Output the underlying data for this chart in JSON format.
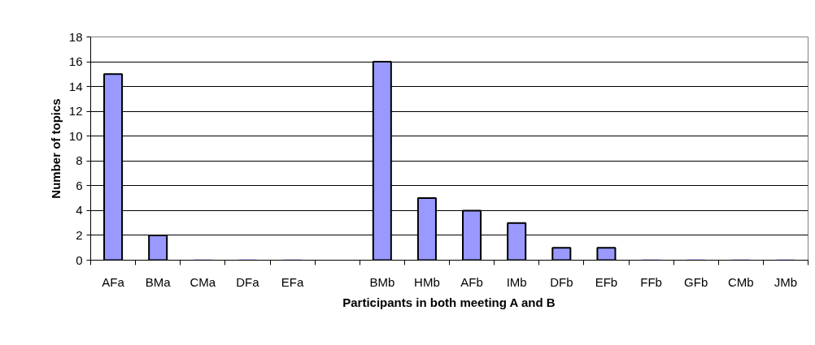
{
  "chart_data": {
    "type": "bar",
    "xlabel": "Participants in both meeting A and B",
    "ylabel": "Number of topics",
    "categories": [
      "AFa",
      "BMa",
      "CMa",
      "DFa",
      "EFa",
      null,
      "BMb",
      "HMb",
      "AFb",
      "IMb",
      "DFb",
      "EFb",
      "FFb",
      "GFb",
      "CMb",
      "JMb"
    ],
    "values": [
      15,
      2,
      0,
      0,
      0,
      null,
      16,
      5,
      4,
      3,
      1,
      1,
      0,
      0,
      0,
      0
    ],
    "color": "#9999ff",
    "ylim": [
      0,
      18
    ],
    "yticks": [
      0,
      2,
      4,
      6,
      8,
      10,
      12,
      14,
      16,
      18
    ],
    "grid": "y"
  }
}
